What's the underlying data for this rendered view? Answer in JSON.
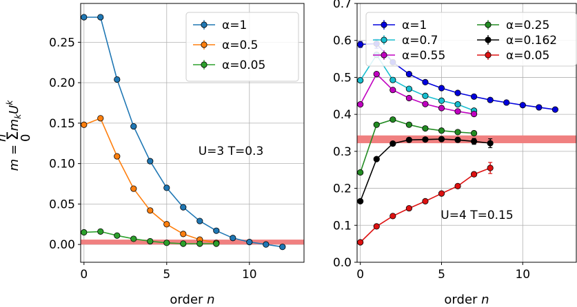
{
  "chart_data": [
    {
      "type": "line",
      "panel": "left",
      "xlabel": "order n",
      "ylabel": "m = Σ_0^n m_k U^k",
      "xlim": [
        -0.2,
        13.3
      ],
      "ylim": [
        -0.022,
        0.298
      ],
      "xticks": [
        0,
        5,
        10
      ],
      "xtick_labels": [
        "0",
        "5",
        "10"
      ],
      "yticks": [
        0.0,
        0.05,
        0.1,
        0.15,
        0.2,
        0.25
      ],
      "ytick_labels": [
        "0.00",
        "0.05",
        "0.10",
        "0.15",
        "0.20",
        "0.25"
      ],
      "grid": true,
      "legend_position": "top-right",
      "annotation": "U=3  T=0.3",
      "band": {
        "y0": 0.0,
        "y1": 0.006,
        "color": "#f08080"
      },
      "series": [
        {
          "name": "α=1",
          "color": "#1f77b4",
          "x": [
            0,
            1,
            2,
            3,
            4,
            5,
            6,
            7,
            8,
            9,
            10,
            11,
            12
          ],
          "y": [
            0.281,
            0.281,
            0.204,
            0.146,
            0.103,
            0.07,
            0.046,
            0.029,
            0.017,
            0.008,
            0.003,
            0.0,
            -0.003
          ]
        },
        {
          "name": "α=0.5",
          "color": "#ff7f0e",
          "x": [
            0,
            1,
            2,
            3,
            4,
            5,
            6,
            7,
            8
          ],
          "y": [
            0.148,
            0.156,
            0.109,
            0.069,
            0.042,
            0.025,
            0.013,
            0.006,
            0.002
          ]
        },
        {
          "name": "α=0.05",
          "color": "#2ca02c",
          "x": [
            0,
            1,
            2,
            3,
            4,
            5,
            6,
            7,
            8
          ],
          "y": [
            0.015,
            0.016,
            0.011,
            0.007,
            0.004,
            0.002,
            0.001,
            0.001,
            0.001
          ]
        }
      ]
    },
    {
      "type": "line",
      "panel": "right",
      "xlabel": "order n",
      "ylabel": "",
      "xlim": [
        -0.2,
        13.3
      ],
      "ylim": [
        0.0,
        0.7
      ],
      "xticks": [
        0,
        5,
        10
      ],
      "xtick_labels": [
        "0",
        "5",
        "10"
      ],
      "yticks": [
        0.0,
        0.1,
        0.2,
        0.3,
        0.4,
        0.5,
        0.6,
        0.7
      ],
      "ytick_labels": [
        "0.0",
        "0.1",
        "0.2",
        "0.3",
        "0.4",
        "0.5",
        "0.6",
        "0.7"
      ],
      "grid": true,
      "legend_position": "top",
      "annotation": "U=4  T=0.15",
      "band": {
        "y0": 0.322,
        "y1": 0.343,
        "color": "#f08080"
      },
      "series": [
        {
          "name": "α=1",
          "color": "#0000dd",
          "x": [
            0,
            1,
            2,
            3,
            4,
            5,
            6,
            7,
            8,
            9,
            10,
            11,
            12
          ],
          "y": [
            0.589,
            0.591,
            0.541,
            0.509,
            0.487,
            0.471,
            0.458,
            0.448,
            0.439,
            0.432,
            0.425,
            0.419,
            0.413
          ],
          "err": [
            0.008,
            0.012,
            0.006,
            0.004,
            0.004,
            0.003,
            0.003,
            0.003,
            0.003,
            0.003,
            0.003,
            0.003,
            0.003
          ]
        },
        {
          "name": "α=0.7",
          "color": "#17becf",
          "x": [
            0,
            1,
            2,
            3,
            4,
            5,
            6,
            7
          ],
          "y": [
            0.492,
            0.561,
            0.493,
            0.469,
            0.45,
            0.437,
            0.427,
            0.41
          ]
        },
        {
          "name": "α=0.55",
          "color": "#c000c0",
          "x": [
            0,
            1,
            2,
            3,
            4,
            5,
            6,
            7
          ],
          "y": [
            0.427,
            0.509,
            0.466,
            0.444,
            0.428,
            0.417,
            0.408,
            0.401
          ]
        },
        {
          "name": "α=0.25",
          "color": "#228b22",
          "x": [
            0,
            1,
            2,
            3,
            4,
            5,
            6,
            7
          ],
          "y": [
            0.243,
            0.372,
            0.386,
            0.372,
            0.362,
            0.356,
            0.352,
            0.349
          ]
        },
        {
          "name": "α=0.162",
          "color": "#000000",
          "x": [
            0,
            1,
            2,
            3,
            4,
            5,
            6,
            7,
            8
          ],
          "y": [
            0.165,
            0.279,
            0.321,
            0.331,
            0.332,
            0.333,
            0.331,
            0.327,
            0.322
          ],
          "err": [
            0.003,
            0.004,
            0.004,
            0.003,
            0.004,
            0.005,
            0.006,
            0.008,
            0.012
          ]
        },
        {
          "name": "α=0.05",
          "color": "#dd1111",
          "x": [
            0,
            1,
            2,
            3,
            4,
            5,
            6,
            7,
            8
          ],
          "y": [
            0.054,
            0.097,
            0.125,
            0.146,
            0.165,
            0.186,
            0.206,
            0.238,
            0.255
          ],
          "err": [
            0.002,
            0.002,
            0.002,
            0.002,
            0.003,
            0.003,
            0.004,
            0.006,
            0.015
          ]
        }
      ]
    }
  ]
}
